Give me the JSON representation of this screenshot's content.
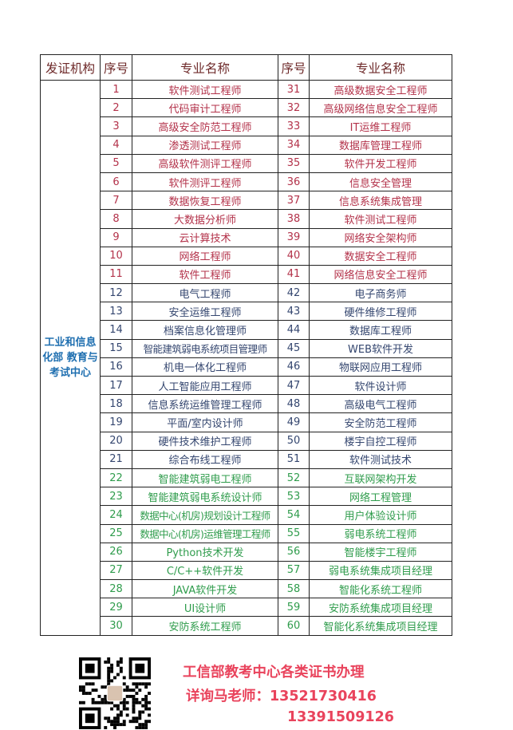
{
  "colors": {
    "red": "#b3324a",
    "blue": "#34466f",
    "green": "#2f9c4c",
    "org": "#1f6fb0",
    "promo": "#e9435c"
  },
  "table": {
    "headers": [
      "发证机构",
      "序号",
      "专业名称",
      "序号",
      "专业名称"
    ],
    "organization": "工业和信息化部 教育与考试中心",
    "rows": [
      {
        "n1": "1",
        "m1": "软件测试工程师",
        "n2": "31",
        "m2": "高级数据安全工程师",
        "c": "red"
      },
      {
        "n1": "2",
        "m1": "代码审计工程师",
        "n2": "32",
        "m2": "高级网络信息安全工程师",
        "c": "red"
      },
      {
        "n1": "3",
        "m1": "高级安全防范工程师",
        "n2": "33",
        "m2": "IT运维工程师",
        "c": "red"
      },
      {
        "n1": "4",
        "m1": "渗透测试工程师",
        "n2": "34",
        "m2": "数据库管理工程师",
        "c": "red"
      },
      {
        "n1": "5",
        "m1": "高级软件测评工程师",
        "n2": "35",
        "m2": "软件开发工程师",
        "c": "red"
      },
      {
        "n1": "6",
        "m1": "软件测评工程师",
        "n2": "36",
        "m2": "信息安全管理",
        "c": "red"
      },
      {
        "n1": "7",
        "m1": "数据恢复工程师",
        "n2": "37",
        "m2": "信息系统集成管理",
        "c": "red"
      },
      {
        "n1": "8",
        "m1": "大数据分析师",
        "n2": "38",
        "m2": "软件测试工程师",
        "c": "red"
      },
      {
        "n1": "9",
        "m1": "云计算技术",
        "n2": "39",
        "m2": "网络安全架构师",
        "c": "red"
      },
      {
        "n1": "10",
        "m1": "网络工程师",
        "n2": "40",
        "m2": "数据安全工程师",
        "c": "red"
      },
      {
        "n1": "11",
        "m1": "软件工程师",
        "n2": "41",
        "m2": "网络信息安全工程师",
        "c": "red"
      },
      {
        "n1": "12",
        "m1": "电气工程师",
        "n2": "42",
        "m2": "电子商务师",
        "c": "blue"
      },
      {
        "n1": "13",
        "m1": "安全运维工程师",
        "n2": "43",
        "m2": "硬件维修工程师",
        "c": "blue"
      },
      {
        "n1": "14",
        "m1": "档案信息化管理师",
        "n2": "44",
        "m2": "数据库工程师",
        "c": "blue"
      },
      {
        "n1": "15",
        "m1": "智能建筑弱电系统项目管理师",
        "n2": "45",
        "m2": "WEB软件开发",
        "c": "blue"
      },
      {
        "n1": "16",
        "m1": "机电一体化工程师",
        "n2": "46",
        "m2": "物联网应用工程师",
        "c": "blue"
      },
      {
        "n1": "17",
        "m1": "人工智能应用工程师",
        "n2": "47",
        "m2": "软件设计师",
        "c": "blue"
      },
      {
        "n1": "18",
        "m1": "信息系统运维管理工程师",
        "n2": "48",
        "m2": "高级电气工程师",
        "c": "blue"
      },
      {
        "n1": "19",
        "m1": "平面/室内设计师",
        "n2": "49",
        "m2": "安全防范工程师",
        "c": "blue"
      },
      {
        "n1": "20",
        "m1": "硬件技术维护工程师",
        "n2": "50",
        "m2": "楼宇自控工程师",
        "c": "blue"
      },
      {
        "n1": "21",
        "m1": "综合布线工程师",
        "n2": "51",
        "m2": "软件测试技术",
        "c": "blue"
      },
      {
        "n1": "22",
        "m1": "智能建筑弱电工程师",
        "n2": "52",
        "m2": "互联网架构开发",
        "c": "green"
      },
      {
        "n1": "23",
        "m1": "智能建筑弱电系统设计师",
        "n2": "53",
        "m2": "网络工程管理",
        "c": "green"
      },
      {
        "n1": "24",
        "m1": "数据中心(机房)规划设计工程师",
        "n2": "54",
        "m2": "用户体验设计师",
        "c": "green"
      },
      {
        "n1": "25",
        "m1": "数据中心(机房)运维管理工程师",
        "n2": "55",
        "m2": "弱电系统工程师",
        "c": "green"
      },
      {
        "n1": "26",
        "m1": "Python技术开发",
        "n2": "56",
        "m2": "智能楼宇工程师",
        "c": "green"
      },
      {
        "n1": "27",
        "m1": "C/C++软件开发",
        "n2": "57",
        "m2": "弱电系统集成项目经理",
        "c": "green"
      },
      {
        "n1": "28",
        "m1": "JAVA软件开发",
        "n2": "58",
        "m2": "智能化系统工程师",
        "c": "green"
      },
      {
        "n1": "29",
        "m1": "UI设计师",
        "n2": "59",
        "m2": "安防系统集成项目经理",
        "c": "green"
      },
      {
        "n1": "30",
        "m1": "安防系统工程师",
        "n2": "60",
        "m2": "智能化系统集成项目经理",
        "c": "green"
      }
    ]
  },
  "footer": {
    "line1": "工信部教考中心各类证书办理",
    "line2": "详询马老师：13521730416",
    "line3": "13391509126",
    "qr_icon": "qr-code"
  }
}
